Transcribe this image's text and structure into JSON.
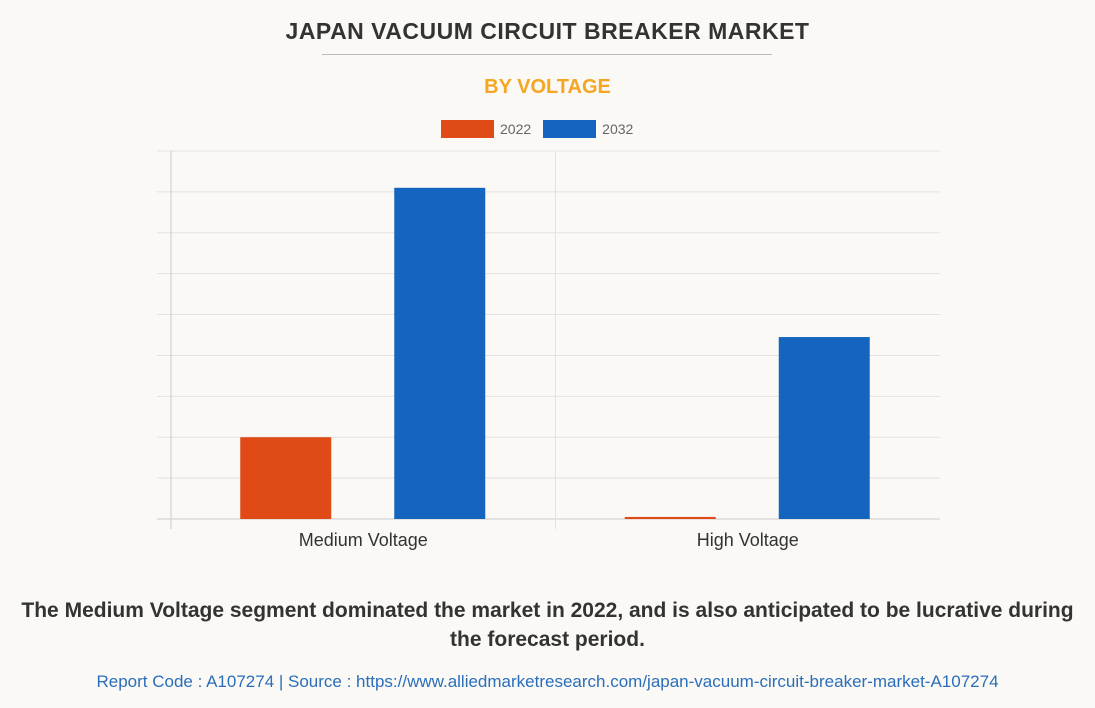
{
  "chart_data": {
    "type": "bar",
    "title": "JAPAN VACUUM CIRCUIT BREAKER MARKET",
    "subtitle": "BY VOLTAGE",
    "categories": [
      "Medium Voltage",
      "High Voltage"
    ],
    "series": [
      {
        "name": "2022",
        "color": "#e04a16",
        "values": [
          2.0,
          0.05
        ]
      },
      {
        "name": "2032",
        "color": "#1565c0",
        "values": [
          8.1,
          4.45
        ]
      }
    ],
    "xlabel": "",
    "ylabel": "",
    "ylim": [
      0,
      9
    ],
    "grid": true,
    "legend_position": "top-center"
  },
  "caption": "The Medium Voltage segment dominated the market in 2022, and is also anticipated to be lucrative during the forecast period.",
  "footer": "Report Code : A107274  |  Source : https://www.alliedmarketresearch.com/japan-vacuum-circuit-breaker-market-A107274"
}
